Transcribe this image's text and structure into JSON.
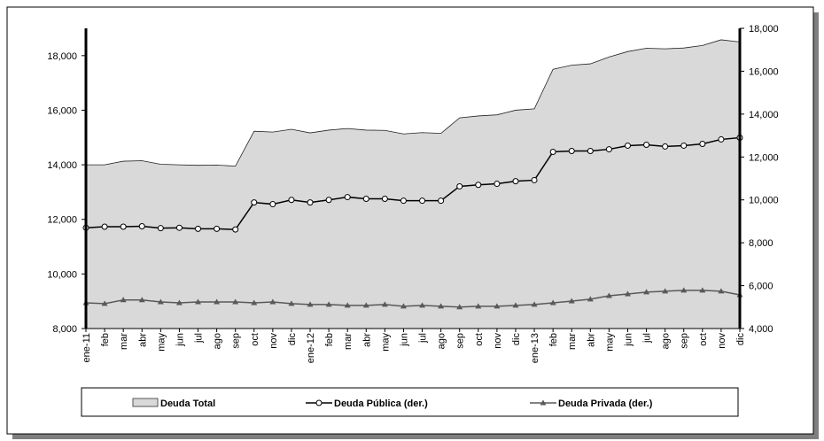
{
  "chart_data": {
    "type": "combo",
    "categories": [
      "ene-11",
      "feb",
      "mar",
      "abr",
      "may",
      "jun",
      "jul",
      "ago",
      "sep",
      "oct",
      "nov",
      "dic",
      "ene-12",
      "feb",
      "mar",
      "abr",
      "may",
      "jun",
      "jul",
      "ago",
      "sep",
      "oct",
      "nov",
      "dic",
      "ene-13",
      "feb",
      "mar",
      "abr",
      "may",
      "jun",
      "jul",
      "ago",
      "sep",
      "oct",
      "nov",
      "dic"
    ],
    "series": [
      {
        "name": "Deuda Total",
        "type": "area",
        "color": "#d9d9d9",
        "values": [
          14000,
          14000,
          14130,
          14150,
          14020,
          14000,
          13980,
          13990,
          13950,
          15230,
          15200,
          15300,
          15170,
          15270,
          15330,
          15270,
          15260,
          15130,
          15180,
          15150,
          15720,
          15790,
          15830,
          16000,
          16050,
          17500,
          17650,
          17700,
          17950,
          18150,
          18270,
          18250,
          18280,
          18370,
          18580,
          18500
        ]
      },
      {
        "name": "Deuda Pública (der.)",
        "type": "line",
        "marker": "circle",
        "color": "#000000",
        "axis": "y2",
        "values": [
          8700,
          8750,
          8750,
          8770,
          8680,
          8700,
          8650,
          8650,
          8620,
          9880,
          9800,
          10000,
          9880,
          10000,
          10130,
          10050,
          10050,
          9960,
          9960,
          9960,
          10630,
          10700,
          10750,
          10870,
          10920,
          12240,
          12280,
          12280,
          12360,
          12530,
          12570,
          12490,
          12530,
          12610,
          12820,
          12900
        ]
      },
      {
        "name": "Deuda Privada (der.)",
        "type": "line",
        "marker": "triangle",
        "color": "#595959",
        "axis": "y2",
        "values": [
          5200,
          5160,
          5330,
          5330,
          5240,
          5200,
          5240,
          5240,
          5240,
          5200,
          5240,
          5160,
          5120,
          5120,
          5080,
          5080,
          5120,
          5040,
          5080,
          5040,
          5000,
          5040,
          5040,
          5080,
          5120,
          5200,
          5280,
          5370,
          5530,
          5610,
          5700,
          5740,
          5780,
          5780,
          5740,
          5570
        ]
      }
    ],
    "ylim": [
      8000,
      19000
    ],
    "yticks": [
      {
        "value": 8000,
        "label": "8,000"
      },
      {
        "value": 10000,
        "label": "10,000"
      },
      {
        "value": 12000,
        "label": "12,000"
      },
      {
        "value": 14000,
        "label": "14,000"
      },
      {
        "value": 16000,
        "label": "16,000"
      },
      {
        "value": 18000,
        "label": "18,000"
      }
    ],
    "y2lim": [
      4000,
      18000
    ],
    "y2ticks": [
      {
        "value": 4000,
        "label": "4,000"
      },
      {
        "value": 6000,
        "label": "6,000"
      },
      {
        "value": 8000,
        "label": "8,000"
      },
      {
        "value": 10000,
        "label": "10,000"
      },
      {
        "value": 12000,
        "label": "12,000"
      },
      {
        "value": 14000,
        "label": "14,000"
      },
      {
        "value": 16000,
        "label": "16,000"
      },
      {
        "value": 18000,
        "label": "18,000"
      }
    ],
    "legend": "bottom"
  }
}
